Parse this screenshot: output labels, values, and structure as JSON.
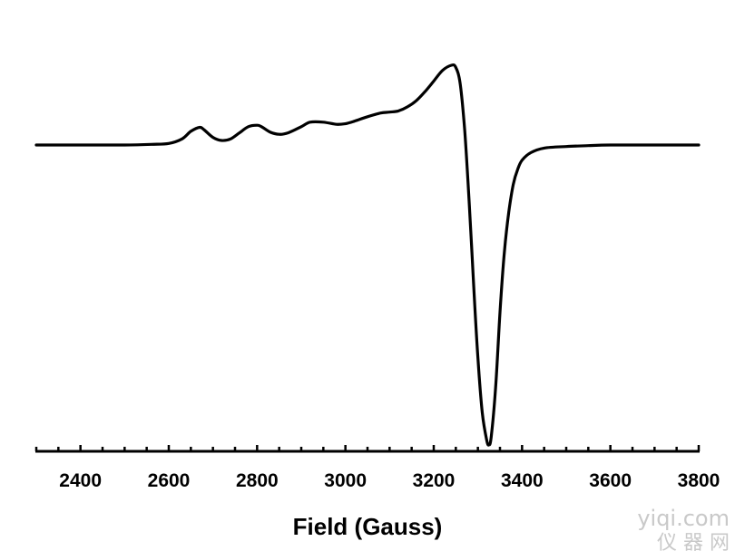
{
  "chart_data": {
    "type": "line",
    "title": "",
    "xlabel": "Field (Gauss)",
    "ylabel": "",
    "xlim": [
      2300,
      3800
    ],
    "ylim": [
      -1.0,
      0.3
    ],
    "x_ticks": [
      2400,
      2600,
      2800,
      3000,
      3200,
      3400,
      3600,
      3800
    ],
    "grid": false,
    "legend": "none",
    "line_color": "#000000",
    "series": [
      {
        "x": [
          2300,
          2400,
          2500,
          2560,
          2600,
          2630,
          2650,
          2670,
          2680,
          2700,
          2720,
          2740,
          2760,
          2780,
          2800,
          2810,
          2830,
          2850,
          2870,
          2900,
          2920,
          2950,
          2980,
          3000,
          3020,
          3050,
          3080,
          3100,
          3120,
          3140,
          3160,
          3180,
          3200,
          3220,
          3240,
          3250,
          3260,
          3270,
          3280,
          3290,
          3300,
          3310,
          3320,
          3325,
          3330,
          3340,
          3350,
          3360,
          3370,
          3380,
          3390,
          3400,
          3420,
          3450,
          3500,
          3550,
          3600,
          3700,
          3800
        ],
        "y": [
          0.0,
          0.0,
          0.0,
          0.002,
          0.005,
          0.02,
          0.045,
          0.058,
          0.05,
          0.025,
          0.015,
          0.02,
          0.04,
          0.06,
          0.065,
          0.06,
          0.042,
          0.035,
          0.04,
          0.06,
          0.075,
          0.075,
          0.068,
          0.07,
          0.078,
          0.093,
          0.105,
          0.108,
          0.112,
          0.125,
          0.145,
          0.175,
          0.21,
          0.245,
          0.262,
          0.255,
          0.2,
          0.05,
          -0.18,
          -0.45,
          -0.7,
          -0.88,
          -0.97,
          -0.985,
          -0.96,
          -0.8,
          -0.55,
          -0.35,
          -0.22,
          -0.13,
          -0.08,
          -0.05,
          -0.025,
          -0.01,
          -0.005,
          -0.002,
          0.0,
          0.0,
          0.0
        ]
      }
    ]
  },
  "watermark": {
    "latin": "yiqi.com",
    "cjk": "仪 器 网"
  }
}
